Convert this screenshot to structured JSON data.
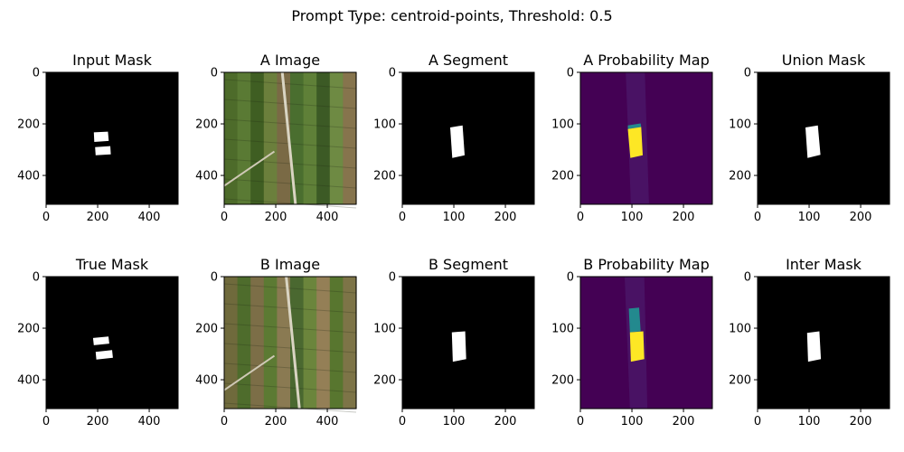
{
  "figure": {
    "suptitle": "Prompt Type: centroid-points,  Threshold: 0.5"
  },
  "colors": {
    "background": "#ffffff",
    "mask_bg": "#000000",
    "mask_fg": "#ffffff",
    "viridis_low": "#440154",
    "viridis_mid": "#23898e",
    "viridis_high": "#fde725"
  },
  "chart_data": [
    {
      "type": "heatmap",
      "id": "input-mask",
      "row": 0,
      "col": 0,
      "title": "Input Mask",
      "kind": "mask",
      "xlim": [
        0,
        512
      ],
      "ylim": [
        512,
        0
      ],
      "xticks": [
        0,
        200,
        400
      ],
      "yticks": [
        0,
        200,
        400
      ],
      "regions": [
        {
          "poly": [
            [
              185,
              233
            ],
            [
              240,
              230
            ],
            [
              243,
              266
            ],
            [
              187,
              270
            ]
          ]
        },
        {
          "poly": [
            [
              190,
              290
            ],
            [
              249,
              286
            ],
            [
              251,
              318
            ],
            [
              192,
              322
            ]
          ]
        }
      ]
    },
    {
      "type": "heatmap",
      "id": "a-image",
      "row": 0,
      "col": 1,
      "title": "A Image",
      "kind": "aerial-a",
      "xlim": [
        0,
        512
      ],
      "ylim": [
        512,
        0
      ],
      "xticks": [
        0,
        200,
        400
      ],
      "yticks": [
        0,
        200,
        400
      ]
    },
    {
      "type": "heatmap",
      "id": "a-segment",
      "row": 0,
      "col": 2,
      "title": "A Segment",
      "kind": "mask",
      "xlim": [
        0,
        256
      ],
      "ylim": [
        256,
        0
      ],
      "xticks": [
        0,
        100,
        200
      ],
      "yticks": [
        0,
        100,
        200
      ],
      "regions": [
        {
          "poly": [
            [
              93,
              107
            ],
            [
              117,
              103
            ],
            [
              121,
              161
            ],
            [
              97,
              166
            ]
          ]
        }
      ]
    },
    {
      "type": "heatmap",
      "id": "a-probability-map",
      "row": 0,
      "col": 3,
      "title": "A Probability Map",
      "kind": "prob",
      "xlim": [
        0,
        256
      ],
      "ylim": [
        256,
        0
      ],
      "xticks": [
        0,
        100,
        200
      ],
      "yticks": [
        0,
        100,
        200
      ],
      "strip": [
        [
          88,
          0
        ],
        [
          125,
          0
        ],
        [
          133,
          256
        ],
        [
          98,
          256
        ]
      ],
      "high": [
        [
          92,
          110
        ],
        [
          118,
          106
        ],
        [
          121,
          161
        ],
        [
          97,
          166
        ]
      ],
      "mid": [
        [
          92,
          103
        ],
        [
          117,
          99
        ],
        [
          118,
          106
        ],
        [
          92,
          110
        ]
      ]
    },
    {
      "type": "heatmap",
      "id": "union-mask",
      "row": 0,
      "col": 4,
      "title": "Union Mask",
      "kind": "mask",
      "xlim": [
        0,
        256
      ],
      "ylim": [
        256,
        0
      ],
      "xticks": [
        0,
        100,
        200
      ],
      "yticks": [
        0,
        100,
        200
      ],
      "regions": [
        {
          "poly": [
            [
              93,
              107
            ],
            [
              117,
              103
            ],
            [
              122,
              160
            ],
            [
              97,
              166
            ]
          ]
        }
      ]
    },
    {
      "type": "heatmap",
      "id": "true-mask",
      "row": 1,
      "col": 0,
      "title": "True Mask",
      "kind": "mask",
      "xlim": [
        0,
        512
      ],
      "ylim": [
        512,
        0
      ],
      "xticks": [
        0,
        200,
        400
      ],
      "yticks": [
        0,
        200,
        400
      ],
      "regions": [
        {
          "poly": [
            [
              182,
              238
            ],
            [
              242,
              232
            ],
            [
              245,
              260
            ],
            [
              185,
              266
            ]
          ]
        },
        {
          "poly": [
            [
              192,
              292
            ],
            [
              256,
              285
            ],
            [
              259,
              315
            ],
            [
              195,
              322
            ]
          ]
        }
      ]
    },
    {
      "type": "heatmap",
      "id": "b-image",
      "row": 1,
      "col": 1,
      "title": "B Image",
      "kind": "aerial-b",
      "xlim": [
        0,
        512
      ],
      "ylim": [
        512,
        0
      ],
      "xticks": [
        0,
        200,
        400
      ],
      "yticks": [
        0,
        200,
        400
      ]
    },
    {
      "type": "heatmap",
      "id": "b-segment",
      "row": 1,
      "col": 2,
      "title": "B Segment",
      "kind": "mask",
      "xlim": [
        0,
        256
      ],
      "ylim": [
        256,
        0
      ],
      "xticks": [
        0,
        100,
        200
      ],
      "yticks": [
        0,
        100,
        200
      ],
      "regions": [
        {
          "poly": [
            [
              96,
              108
            ],
            [
              122,
              106
            ],
            [
              124,
              160
            ],
            [
              98,
              165
            ]
          ]
        }
      ]
    },
    {
      "type": "heatmap",
      "id": "b-probability-map",
      "row": 1,
      "col": 3,
      "title": "B Probability Map",
      "kind": "prob",
      "xlim": [
        0,
        256
      ],
      "ylim": [
        256,
        0
      ],
      "xticks": [
        0,
        100,
        200
      ],
      "yticks": [
        0,
        100,
        200
      ],
      "strip": [
        [
          86,
          0
        ],
        [
          124,
          0
        ],
        [
          130,
          256
        ],
        [
          96,
          256
        ]
      ],
      "high": [
        [
          96,
          108
        ],
        [
          122,
          106
        ],
        [
          124,
          160
        ],
        [
          98,
          165
        ]
      ],
      "mid": [
        [
          94,
          62
        ],
        [
          114,
          60
        ],
        [
          117,
          106
        ],
        [
          96,
          108
        ]
      ]
    },
    {
      "type": "heatmap",
      "id": "inter-mask",
      "row": 1,
      "col": 4,
      "title": "Inter Mask",
      "kind": "mask",
      "xlim": [
        0,
        256
      ],
      "ylim": [
        256,
        0
      ],
      "xticks": [
        0,
        100,
        200
      ],
      "yticks": [
        0,
        100,
        200
      ],
      "regions": [
        {
          "poly": [
            [
              96,
              109
            ],
            [
              120,
              106
            ],
            [
              123,
              160
            ],
            [
              98,
              165
            ]
          ]
        }
      ]
    }
  ]
}
